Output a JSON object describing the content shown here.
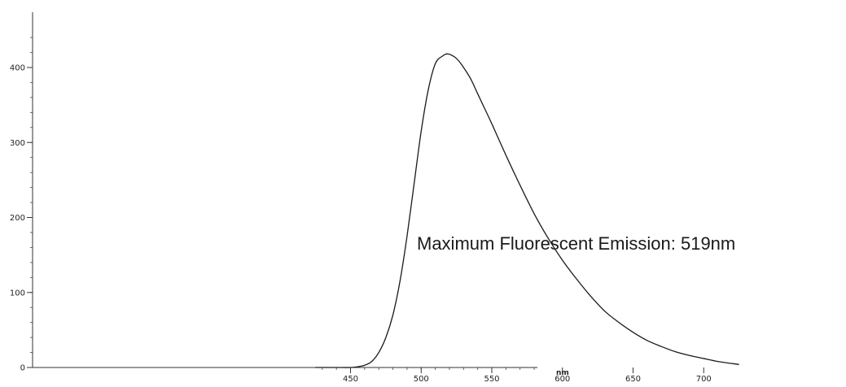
{
  "chart_data": {
    "type": "line",
    "title": "",
    "xlabel": "nm",
    "ylabel": "",
    "xlim": [
      425,
      725
    ],
    "ylim": [
      0,
      450
    ],
    "x_ticks": [
      450,
      500,
      550,
      600,
      650,
      700
    ],
    "y_ticks": [
      0,
      100,
      200,
      300,
      400
    ],
    "x_tick_labels": [
      "450",
      "500",
      "550",
      "600",
      "650",
      "700"
    ],
    "y_tick_labels": [
      "0",
      "100",
      "200",
      "300",
      "400"
    ],
    "grid": false,
    "legend": "none",
    "line_color": "#1a1a1a",
    "annotation": "Maximum Fluorescent Emission: 519nm",
    "series": [
      {
        "x": [
          425,
          440,
          450,
          455,
          460,
          465,
          470,
          475,
          480,
          485,
          490,
          495,
          500,
          505,
          510,
          515,
          519,
          525,
          530,
          535,
          540,
          545,
          550,
          560,
          570,
          580,
          590,
          600,
          610,
          620,
          630,
          640,
          650,
          660,
          670,
          680,
          690,
          700,
          710,
          725
        ],
        "y": [
          0,
          0,
          0,
          1,
          3,
          8,
          20,
          40,
          70,
          115,
          175,
          245,
          315,
          370,
          405,
          415,
          418,
          412,
          400,
          385,
          365,
          345,
          325,
          283,
          243,
          205,
          172,
          143,
          118,
          95,
          75,
          60,
          47,
          36,
          28,
          21,
          16,
          12,
          8,
          4
        ]
      }
    ]
  }
}
